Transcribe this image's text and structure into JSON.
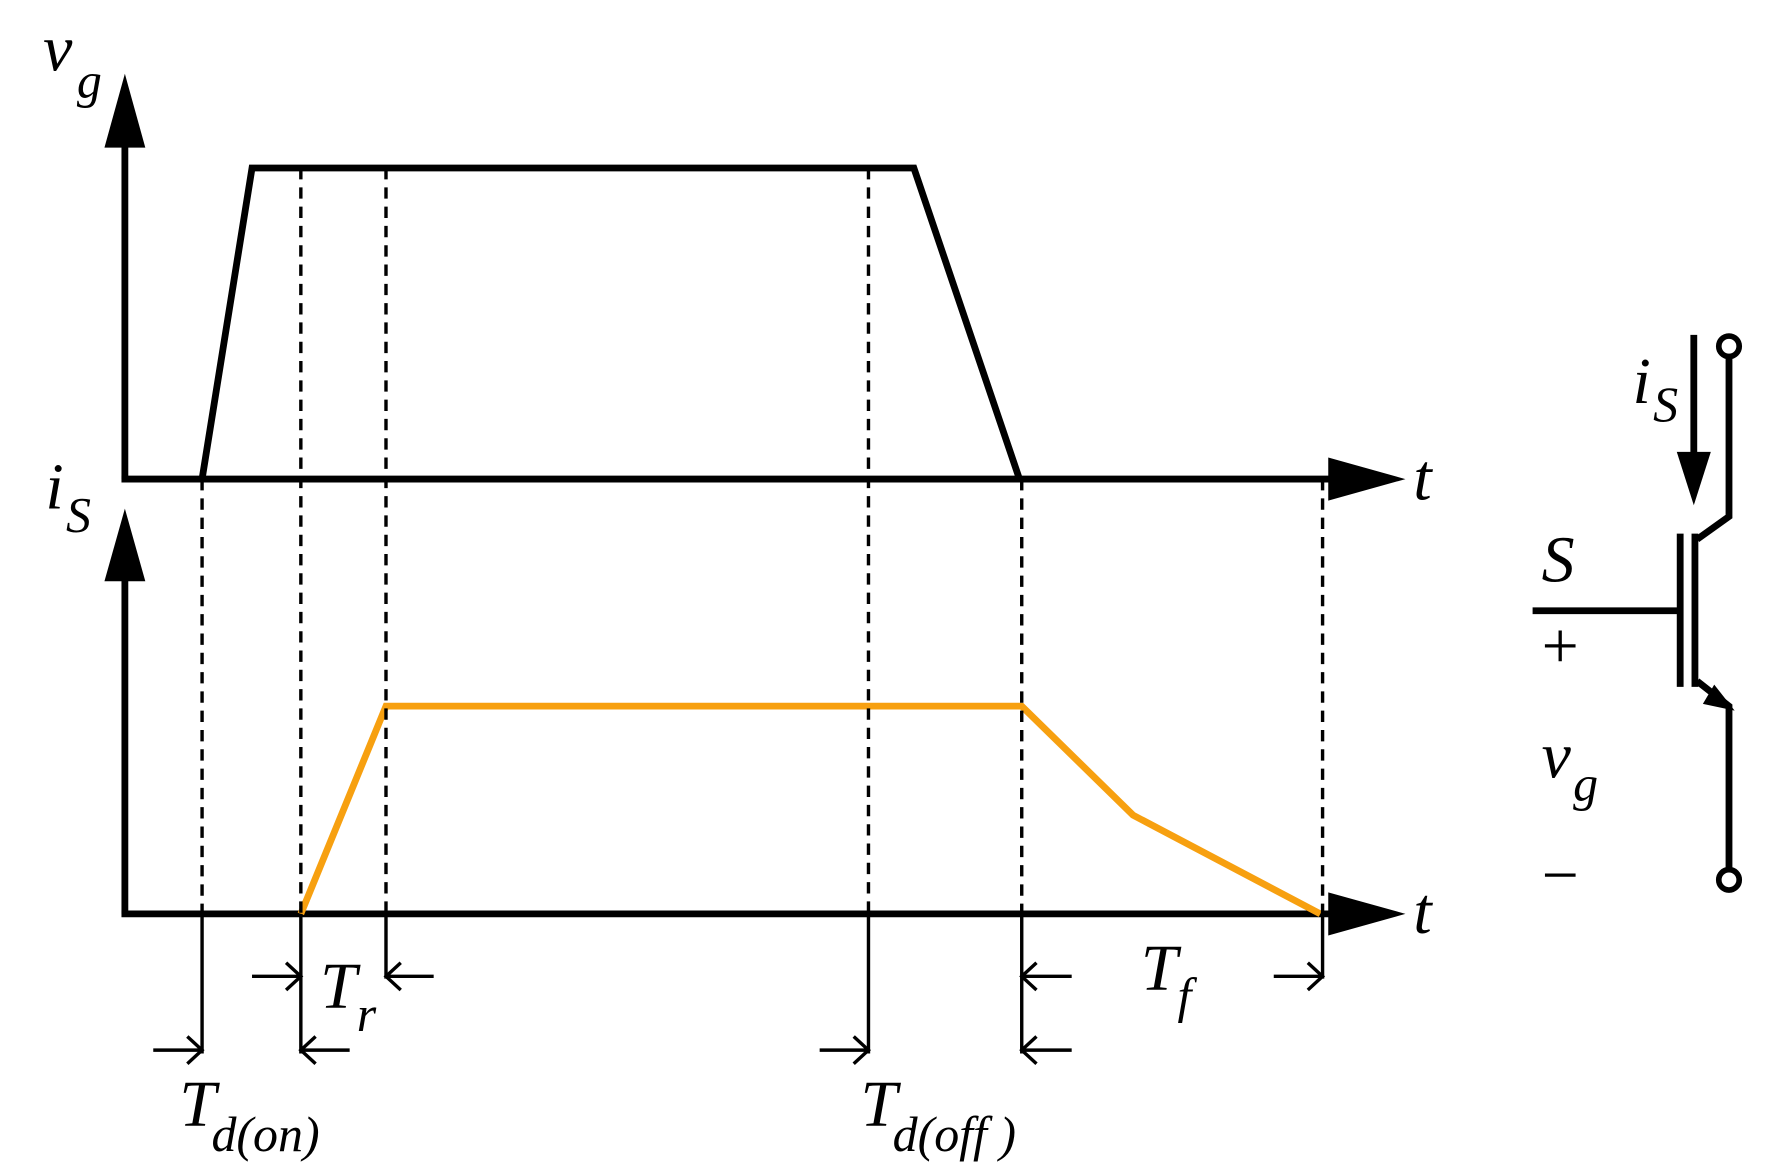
{
  "axes": {
    "gate_voltage": {
      "symbol": "v",
      "sub": "g"
    },
    "current": {
      "symbol": "i",
      "sub": "S"
    },
    "time_top": "t",
    "time_bottom": "t"
  },
  "intervals": {
    "rise": {
      "symbol": "T",
      "sub": "r"
    },
    "delay_on": {
      "symbol": "T",
      "sub": "d(on)"
    },
    "delay_off": {
      "symbol": "T",
      "sub": "d(off )"
    },
    "fall": {
      "symbol": "T",
      "sub": "f"
    }
  },
  "circuit": {
    "current": {
      "symbol": "i",
      "sub": "S"
    },
    "switch": "S",
    "plus": "+",
    "gate_voltage": {
      "symbol": "v",
      "sub": "g"
    },
    "minus": "−"
  }
}
